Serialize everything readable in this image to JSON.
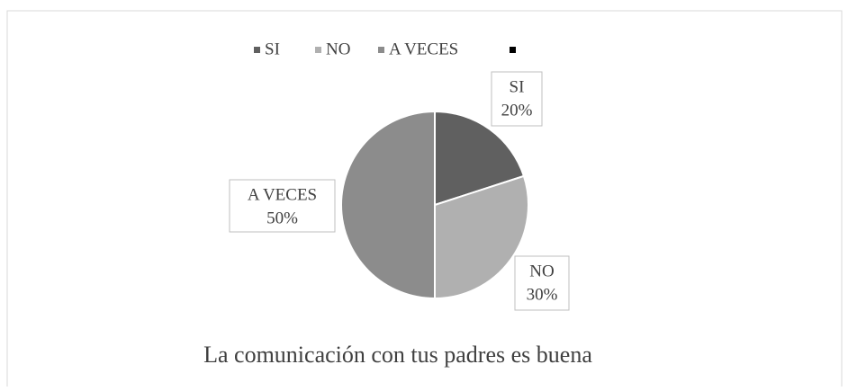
{
  "chart_data": {
    "type": "pie",
    "title": "La comunicación con tus padres es buena",
    "categories": [
      "SI",
      "NO",
      "A VECES",
      null
    ],
    "values": [
      20,
      30,
      50,
      null
    ],
    "value_labels": [
      "20%",
      "30%",
      "50%",
      null
    ],
    "colors": [
      "#606060",
      "#b0b0b0",
      "#8c8c8c",
      "#000000"
    ],
    "legend": "top"
  }
}
